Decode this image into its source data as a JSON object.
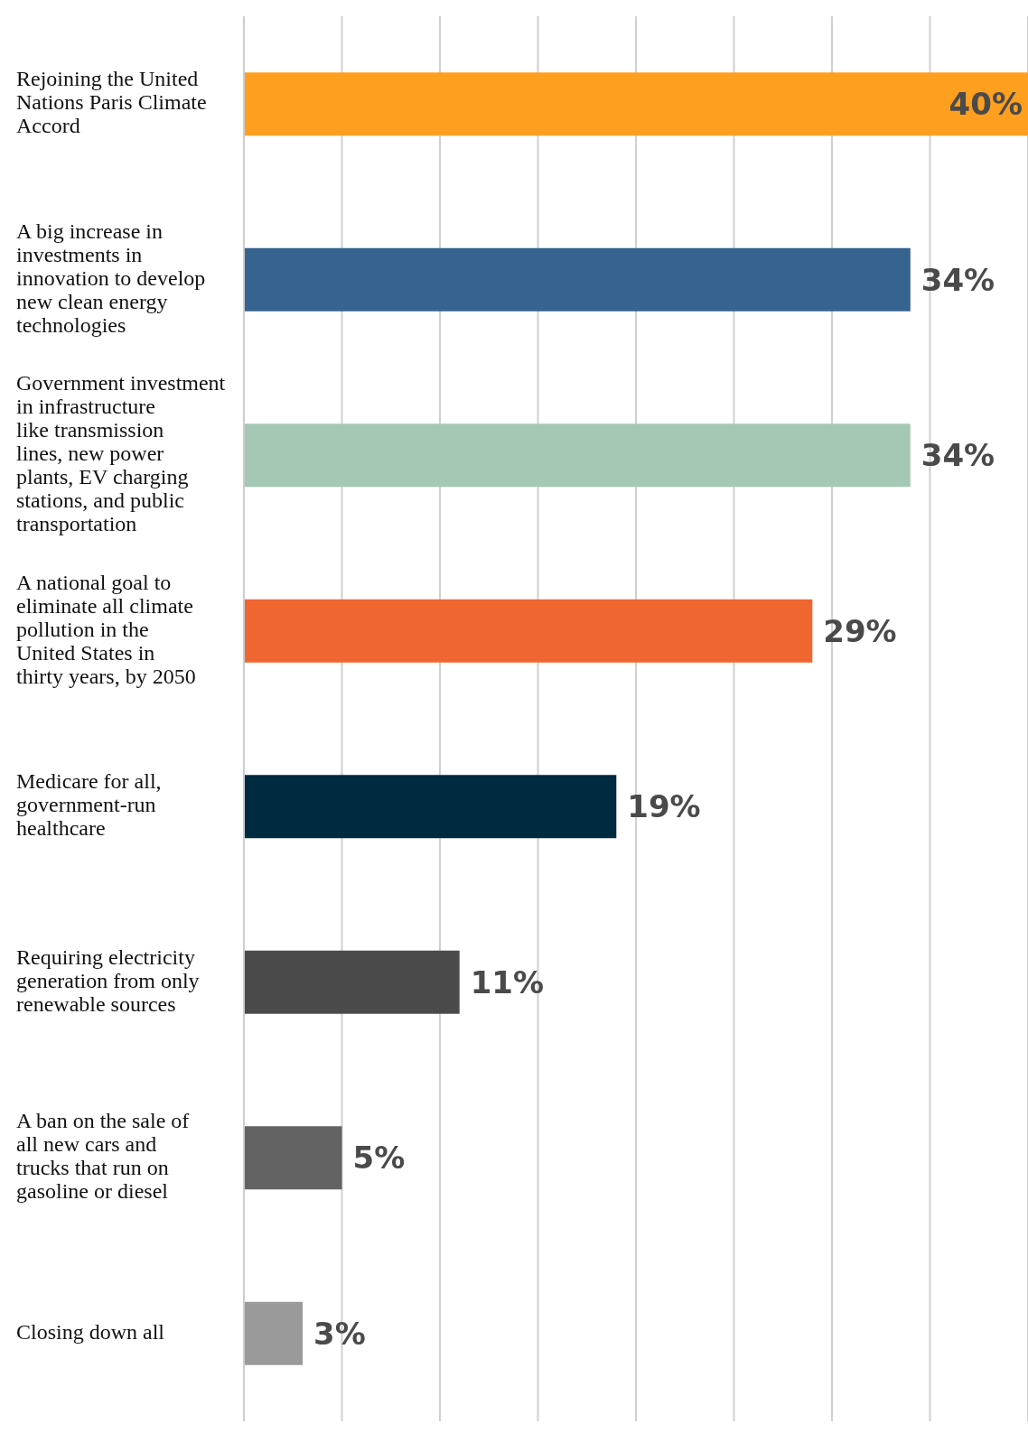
{
  "chart_data": {
    "type": "bar",
    "orientation": "horizontal",
    "categories": [
      "Rejoining the United Nations Paris Climate Accord",
      "A big increase in investments in innovation to develop new clean energy technologies",
      "Government investment in infrastructure like transmission lines, new power plants, EV charging stations, and public transportation",
      "A national goal to eliminate all climate pollution in the United States in thirty years, by 2050",
      "Medicare for all, government-run healthcare",
      "Requiring electricity generation from only renewable sources",
      "A ban on the sale of all new cars and trucks that run on gasoline or diesel",
      "Closing down all"
    ],
    "values": [
      40,
      34,
      34,
      29,
      19,
      11,
      5,
      3
    ],
    "colors": [
      "#ff9f1f",
      "#36638f",
      "#a5c8b4",
      "#f06630",
      "#002a40",
      "#4a4a4a",
      "#636363",
      "#9a9a9a"
    ],
    "value_labels": [
      "40%",
      "34%",
      "34%",
      "29%",
      "19%",
      "11%",
      "5%",
      "3%"
    ],
    "xlim": [
      0,
      40
    ],
    "xticks": [
      {
        "value": 0,
        "label": null
      },
      {
        "value": 5,
        "label": null
      },
      {
        "value": 10,
        "label": null
      },
      {
        "value": 15,
        "label": null
      },
      {
        "value": 20,
        "label": null
      },
      {
        "value": 25,
        "label": null
      },
      {
        "value": 30,
        "label": null
      },
      {
        "value": 35,
        "label": null
      },
      {
        "value": 40,
        "label": null
      }
    ],
    "grid": "x",
    "tick_labels": "y"
  }
}
